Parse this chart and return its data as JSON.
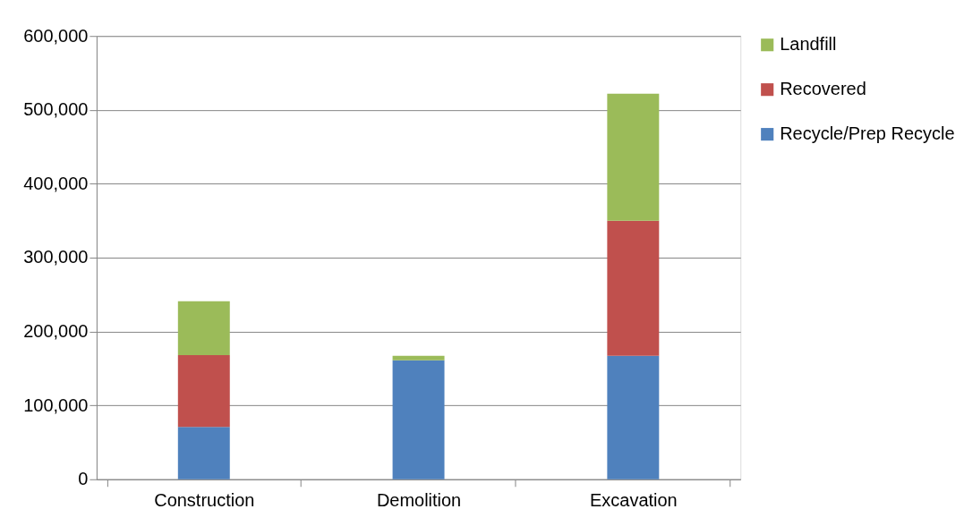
{
  "chart_data": {
    "type": "bar",
    "stacked": true,
    "categories": [
      "Construction",
      "Demolition",
      "Excavation"
    ],
    "series": [
      {
        "name": "Recycle/Prep Recycle",
        "color": "#4f81bd",
        "values": [
          71000,
          161000,
          167000
        ]
      },
      {
        "name": "Recovered",
        "color": "#c0504d",
        "values": [
          97000,
          0,
          183000
        ]
      },
      {
        "name": "Landfill",
        "color": "#9bbb59",
        "values": [
          73000,
          6000,
          172000
        ]
      }
    ],
    "ylim": [
      0,
      600000
    ],
    "yticks": [
      0,
      {
        "value": 100000,
        "label": "100,000"
      },
      {
        "value": 200000,
        "label": "200,000"
      },
      {
        "value": 300000,
        "label": "300,000"
      },
      {
        "value": 400000,
        "label": "400,000"
      },
      {
        "value": 500000,
        "label": "500,000"
      },
      {
        "value": 600000,
        "label": "600,000"
      }
    ],
    "grid": "y",
    "legend": "right"
  }
}
